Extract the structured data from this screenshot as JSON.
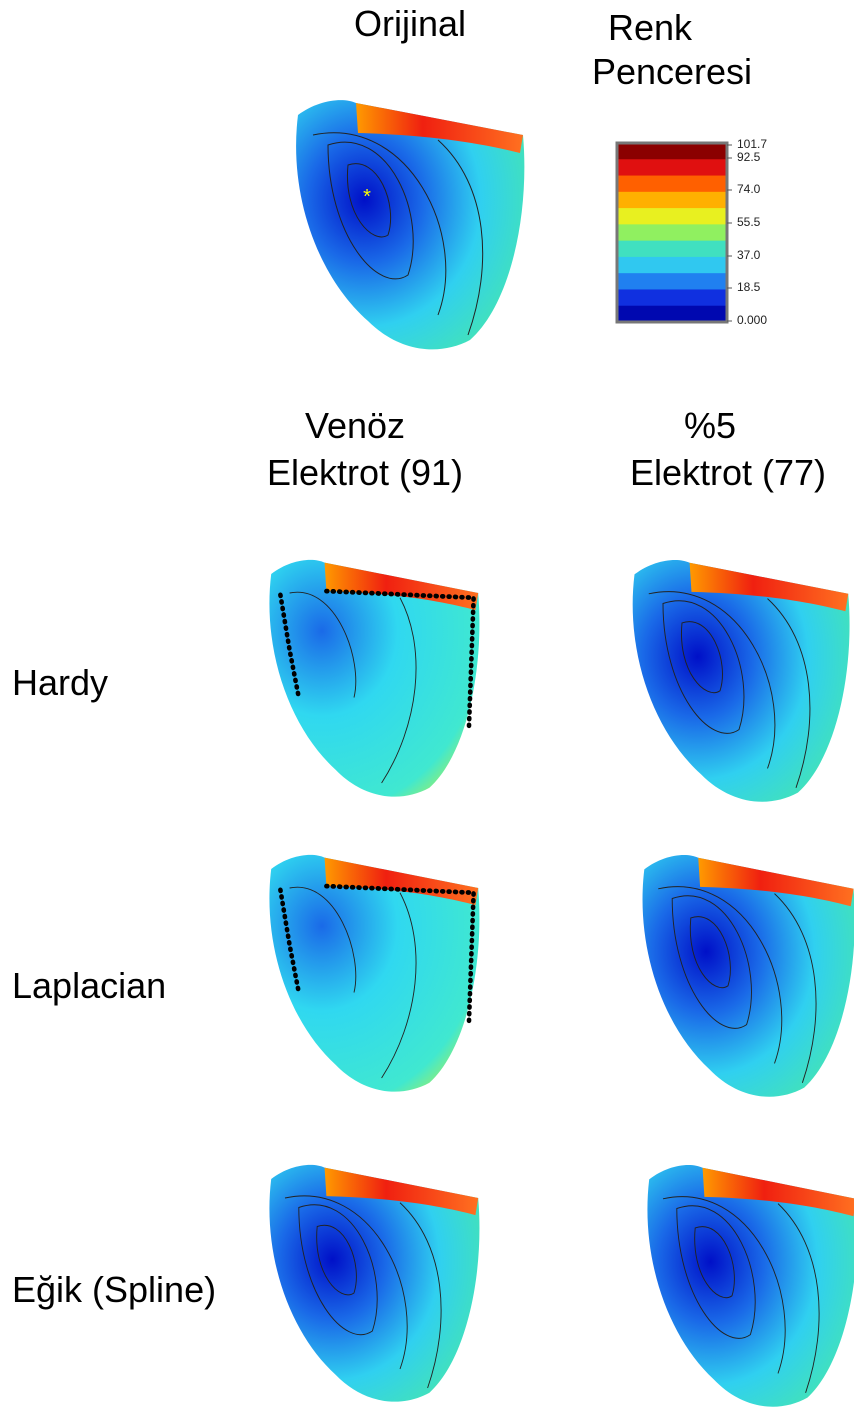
{
  "header": {
    "original": "Orijinal",
    "color_window": [
      "Renk",
      "Penceresi"
    ]
  },
  "colorbar": {
    "ticks": [
      "101.7",
      "92.5",
      "74.0",
      "55.5",
      "37.0",
      "18.5",
      "0.000"
    ]
  },
  "columns": [
    {
      "lines": [
        "Venöz",
        "Elektrot (91)"
      ]
    },
    {
      "lines": [
        "%5",
        "Elektrot (77)"
      ]
    }
  ],
  "rows": [
    "Hardy",
    "Laplacian",
    "Eğik (Spline)"
  ]
}
